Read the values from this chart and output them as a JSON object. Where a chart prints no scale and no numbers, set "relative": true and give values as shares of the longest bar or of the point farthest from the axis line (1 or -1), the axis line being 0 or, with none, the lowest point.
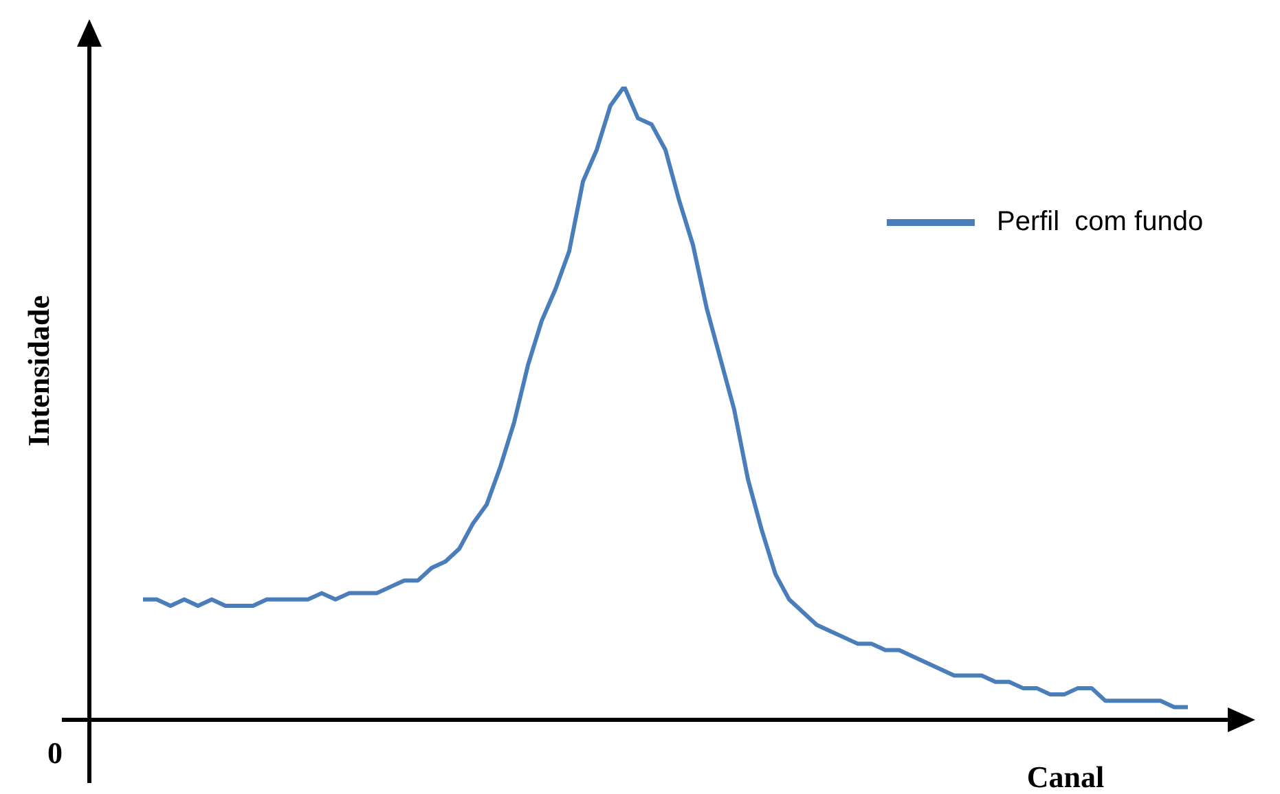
{
  "chart_data": {
    "type": "line",
    "relative": true,
    "xlabel": "Canal",
    "ylabel": "Intensidade",
    "annotations": [
      "0"
    ],
    "legend": "top right",
    "marker": "none",
    "categories": [
      null,
      null,
      null,
      null,
      null,
      null,
      null,
      null,
      null,
      null,
      null,
      null,
      null,
      null,
      null,
      null,
      null,
      null,
      null,
      null,
      null,
      null,
      null,
      null,
      null,
      null,
      null,
      null,
      null,
      null,
      null,
      null,
      null,
      null,
      null,
      null,
      null,
      null,
      null,
      null,
      null,
      null,
      null,
      null,
      null,
      null,
      null,
      null,
      null,
      null,
      null,
      null,
      null,
      null,
      null,
      null,
      null,
      null,
      null,
      null,
      null,
      null,
      null,
      null,
      null,
      null,
      null,
      null,
      null,
      null,
      null,
      null,
      null,
      null,
      null,
      null,
      null
    ],
    "series": [
      {
        "name": "Perfil  com fundo",
        "color": "#4a7ebb",
        "values": [
          0.19,
          0.19,
          0.18,
          0.19,
          0.18,
          0.19,
          0.18,
          0.18,
          0.18,
          0.19,
          0.19,
          0.19,
          0.19,
          0.2,
          0.19,
          0.2,
          0.2,
          0.2,
          0.21,
          0.22,
          0.22,
          0.24,
          0.25,
          0.27,
          0.31,
          0.34,
          0.4,
          0.47,
          0.56,
          0.63,
          0.68,
          0.74,
          0.85,
          0.9,
          0.97,
          1.0,
          0.95,
          0.94,
          0.9,
          0.82,
          0.75,
          0.65,
          0.57,
          0.49,
          0.38,
          0.3,
          0.23,
          0.19,
          0.17,
          0.15,
          0.14,
          0.13,
          0.12,
          0.12,
          0.11,
          0.11,
          0.1,
          0.09,
          0.08,
          0.07,
          0.07,
          0.07,
          0.06,
          0.06,
          0.05,
          0.05,
          0.04,
          0.04,
          0.05,
          0.05,
          0.03,
          0.03,
          0.03,
          0.03,
          0.03,
          0.02,
          0.02
        ]
      }
    ]
  }
}
